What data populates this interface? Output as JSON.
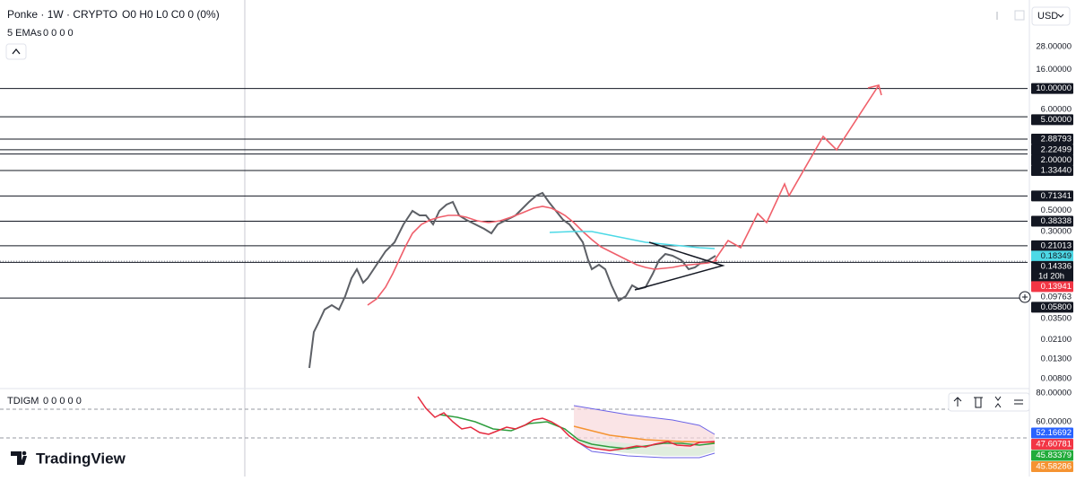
{
  "header": {
    "title": "Ponke · 1W · CRYPTO",
    "ohlc": "O0 H0 L0 C0 0 (0%)",
    "study": "5 EMAs",
    "study_values": "0 0 0 0"
  },
  "currency": "USD",
  "price_scale": [
    {
      "value": 28,
      "label": "28.00000",
      "style": "plain"
    },
    {
      "value": 16,
      "label": "16.00000",
      "style": "plain"
    },
    {
      "value": 10,
      "label": "10.00000",
      "style": "dark",
      "level": true
    },
    {
      "value": 6,
      "label": "6.00000",
      "style": "plain"
    },
    {
      "value": 5,
      "label": "5.00000",
      "style": "dark",
      "level": true
    },
    {
      "value": 2.88793,
      "label": "2.88793",
      "style": "dark",
      "level": true
    },
    {
      "value": 2.22499,
      "label": "2.22499",
      "style": "dark",
      "level": true
    },
    {
      "value": 2,
      "label": "2.00000",
      "style": "dark",
      "level": true
    },
    {
      "value": 1.3344,
      "label": "1.33440",
      "style": "dark",
      "level": true
    },
    {
      "value": 0.71341,
      "label": "0.71341",
      "style": "dark",
      "level": true
    },
    {
      "value": 0.5,
      "label": "0.50000",
      "style": "plain"
    },
    {
      "value": 0.38338,
      "label": "0.38338",
      "style": "dark",
      "level": true
    },
    {
      "value": 0.3,
      "label": "0.30000",
      "style": "plain"
    },
    {
      "value": 0.21013,
      "label": "0.21013",
      "style": "dark",
      "level": true
    },
    {
      "value": 0.18349,
      "label": "0.18349",
      "style": "cyan"
    },
    {
      "value": 0.14336,
      "label": "0.14336",
      "style": "dark",
      "countdown": "1d 20h"
    },
    {
      "value": 0.13941,
      "label": "0.13941",
      "style": "red",
      "level": true
    },
    {
      "value": 0.09763,
      "label": "0.09763",
      "style": "plain"
    },
    {
      "value": 0.058,
      "label": "0.05800",
      "style": "dark",
      "level": true
    },
    {
      "value": 0.035,
      "label": "0.03500",
      "style": "plain"
    },
    {
      "value": 0.021,
      "label": "0.02100",
      "style": "plain"
    },
    {
      "value": 0.013,
      "label": "0.01300",
      "style": "plain"
    },
    {
      "value": 0.008,
      "label": "0.00800",
      "style": "plain"
    }
  ],
  "indicator": {
    "name": "TDIGM",
    "values": "0 0 0 0 0",
    "scale": [
      {
        "value": 80,
        "label": "80.00000",
        "style": "plain"
      },
      {
        "value": 60,
        "label": "60.00000",
        "style": "plain"
      },
      {
        "value": 52.16692,
        "label": "52.16692",
        "style": "blue"
      },
      {
        "value": 47.60781,
        "label": "47.60781",
        "style": "red"
      },
      {
        "value": 45.83379,
        "label": "45.83379",
        "style": "green"
      },
      {
        "value": 45.58286,
        "label": "45.58286",
        "style": "orange"
      }
    ]
  },
  "logo": "TradingView"
}
